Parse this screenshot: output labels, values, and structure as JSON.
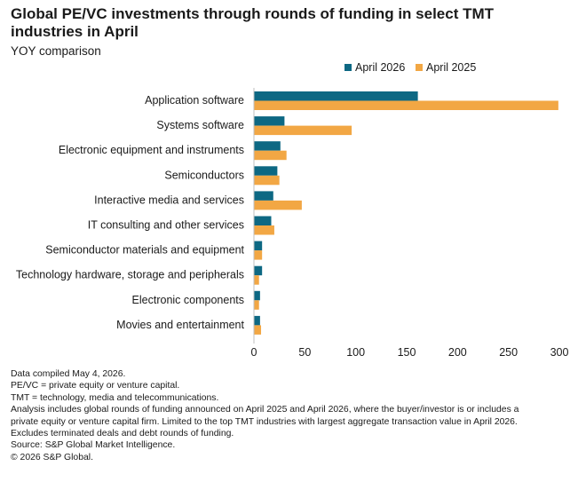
{
  "header": {
    "title": "Global PE/VC investments through rounds of funding in select TMT industries in April",
    "subtitle": "YOY comparison"
  },
  "colors": {
    "series_2026": "#0d6883",
    "series_2025": "#f2a744",
    "axis": "#bfbfbf",
    "text": "#1a1a1a"
  },
  "chart_data": {
    "type": "bar",
    "orientation": "horizontal",
    "categories": [
      "Application software",
      "Systems software",
      "Electronic equipment and instruments",
      "Semiconductors",
      "Interactive media and services",
      "IT consulting and other services",
      "Semiconductor materials and equipment",
      "Technology hardware, storage and peripherals",
      "Electronic components",
      "Movies and entertainment"
    ],
    "series": [
      {
        "name": "April 2026",
        "values": [
          161,
          30,
          26,
          23,
          19,
          17,
          8,
          8,
          6,
          6
        ]
      },
      {
        "name": "April 2025",
        "values": [
          299,
          96,
          32,
          25,
          47,
          20,
          8,
          5,
          5,
          7
        ]
      }
    ],
    "xlim": [
      0,
      300
    ],
    "xticks": [
      0,
      50,
      100,
      150,
      200,
      250,
      300
    ],
    "xlabel": "",
    "ylabel": "",
    "grid": false,
    "legend": "top-right"
  },
  "notes": [
    "Data compiled May 4, 2026.",
    "PE/VC = private equity or venture capital.",
    "TMT = technology, media and telecommunications.",
    "Analysis includes global rounds of funding announced on April 2025 and April 2026, where the buyer/investor is or includes a",
    "private equity or venture capital firm. Limited to the top TMT industries with largest aggregate transaction value in April 2026.",
    "Excludes terminated deals and debt rounds of funding.",
    "Source: S&P Global Market Intelligence.",
    "© 2026 S&P Global."
  ]
}
